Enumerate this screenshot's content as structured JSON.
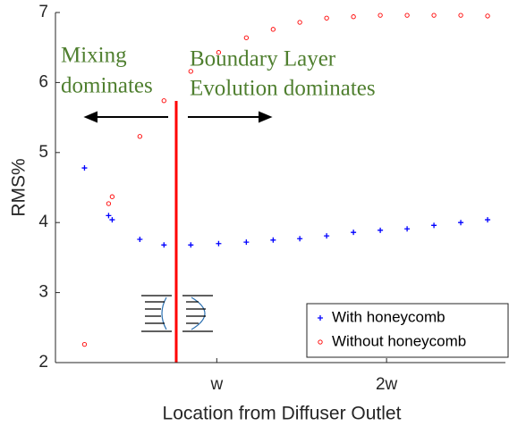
{
  "chart_data": {
    "type": "scatter",
    "xlabel": "Location from Diffuser Outlet",
    "ylabel": "RMS%",
    "xlim": [
      0.05,
      2.7
    ],
    "ylim": [
      2,
      7
    ],
    "xticks": [
      {
        "value": 1,
        "label": "w"
      },
      {
        "value": 2,
        "label": "2w"
      }
    ],
    "yticks": [
      2,
      3,
      4,
      5,
      6,
      7
    ],
    "legend": "lower right",
    "annotations": [
      "Mixing",
      "dominates",
      "Boundary Layer",
      "Evolution dominates"
    ],
    "series": [
      {
        "name": "With honeycomb",
        "color": "#0000ff",
        "marker": "plus",
        "x": [
          0.221,
          0.363,
          0.384,
          0.547,
          0.689,
          0.847,
          1.011,
          1.174,
          1.332,
          1.489,
          1.647,
          1.805,
          1.963,
          2.121,
          2.279,
          2.437,
          2.595
        ],
        "values": [
          4.78,
          4.1,
          4.04,
          3.76,
          3.68,
          3.68,
          3.7,
          3.72,
          3.75,
          3.77,
          3.81,
          3.86,
          3.89,
          3.91,
          3.96,
          4.0,
          4.04
        ]
      },
      {
        "name": "Without honeycomb",
        "color": "#ff0000",
        "marker": "circle",
        "x": [
          0.221,
          0.363,
          0.384,
          0.547,
          0.689,
          0.847,
          1.011,
          1.174,
          1.332,
          1.489,
          1.647,
          1.805,
          1.963,
          2.121,
          2.279,
          2.437,
          2.595
        ],
        "values": [
          2.26,
          4.27,
          4.37,
          5.23,
          5.74,
          6.16,
          6.43,
          6.64,
          6.76,
          6.86,
          6.92,
          6.94,
          6.96,
          6.96,
          6.96,
          6.96,
          6.95
        ]
      }
    ]
  }
}
